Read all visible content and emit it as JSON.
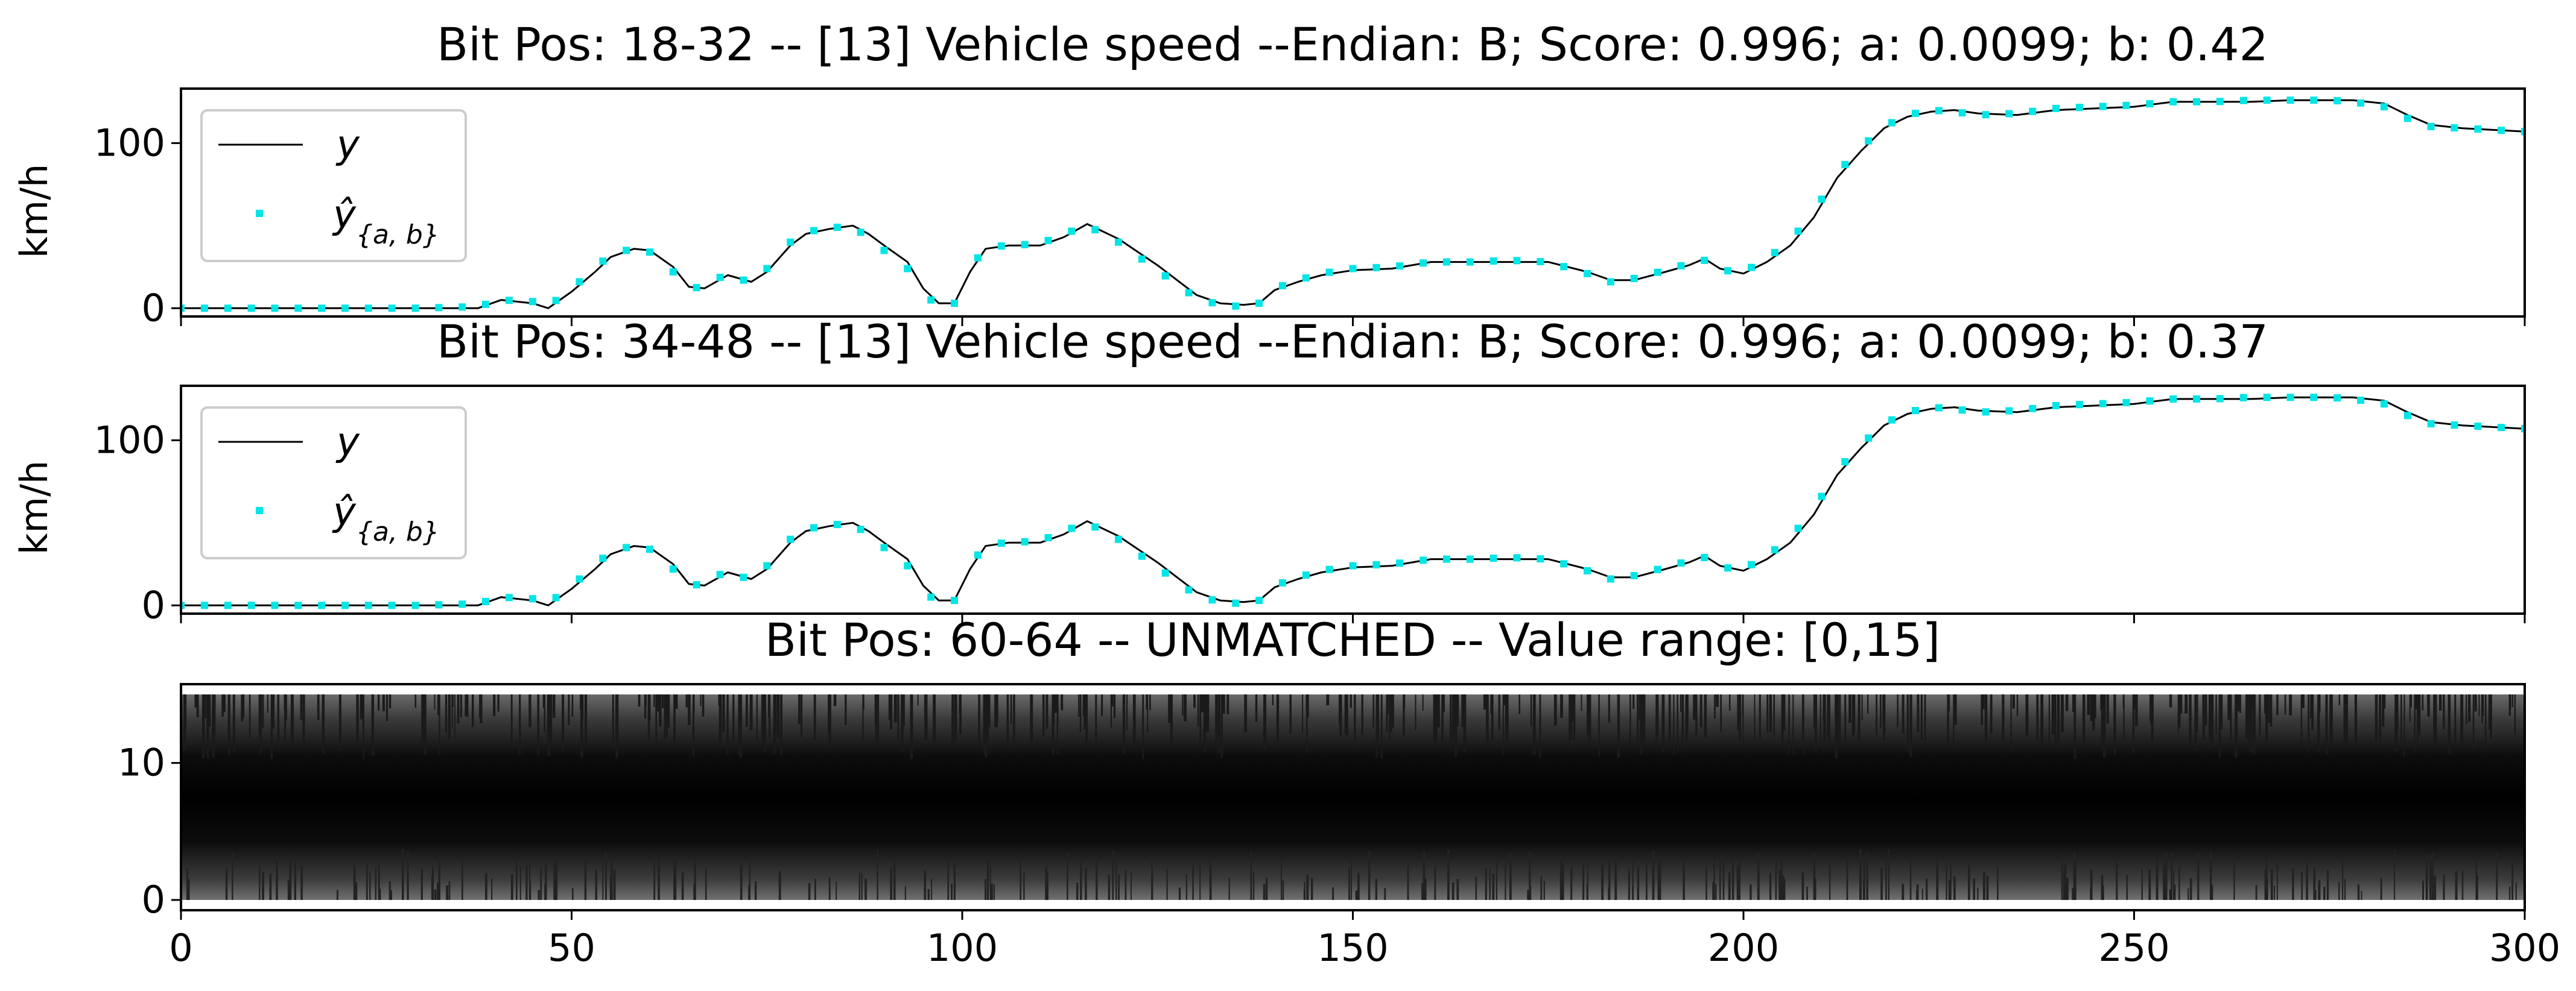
{
  "chart_data": [
    {
      "type": "line",
      "title": "Bit Pos: 18-32 --  [13] Vehicle speed --Endian: B;  Score: 0.996; a: 0.0099; b: 0.42",
      "xlabel": "",
      "ylabel": "km/h",
      "xlim": [
        0,
        300
      ],
      "ylim": [
        -5,
        133
      ],
      "yticks": [
        0,
        100
      ],
      "xticks": [
        0,
        50,
        100,
        150,
        200,
        250,
        300
      ],
      "grid": false,
      "legend_position": "upper-left",
      "x": [
        0,
        10,
        20,
        30,
        38,
        41,
        45,
        47,
        50,
        53,
        55,
        58,
        60,
        63,
        65,
        67,
        70,
        73,
        75,
        78,
        80,
        83,
        86,
        88,
        90,
        93,
        95,
        97,
        99,
        101,
        103,
        106,
        110,
        113,
        116,
        120,
        125,
        130,
        133,
        136,
        138,
        140,
        143,
        146,
        150,
        155,
        160,
        165,
        170,
        175,
        180,
        183,
        186,
        190,
        193,
        195,
        197,
        200,
        203,
        206,
        209,
        212,
        215,
        218,
        221,
        224,
        227,
        230,
        235,
        240,
        245,
        250,
        255,
        260,
        265,
        270,
        275,
        278,
        282,
        285,
        288,
        292,
        296,
        300
      ],
      "series": [
        {
          "name": "y",
          "color": "#000000",
          "style": "line",
          "values": [
            0,
            0,
            0,
            0,
            0,
            5,
            3,
            0,
            10,
            22,
            31,
            36,
            35,
            25,
            13,
            12,
            20,
            16,
            22,
            38,
            45,
            48,
            50,
            45,
            38,
            28,
            12,
            3,
            3,
            22,
            36,
            38,
            38,
            43,
            51,
            42,
            26,
            8,
            3,
            2,
            3,
            11,
            16,
            20,
            23,
            24,
            28,
            28,
            28,
            28,
            22,
            17,
            17,
            22,
            26,
            30,
            24,
            21,
            28,
            38,
            55,
            79,
            95,
            109,
            116,
            119,
            120,
            118,
            117,
            120,
            121,
            122,
            125,
            125,
            125,
            126,
            126,
            126,
            124,
            117,
            111,
            109,
            108,
            107
          ]
        },
        {
          "name": "ŷ",
          "color": "#00e5e5",
          "style": "points",
          "values": [
            0,
            0,
            0,
            0,
            1,
            5,
            4,
            1,
            12,
            24,
            33,
            36,
            34,
            22,
            11,
            14,
            21,
            15,
            24,
            40,
            46,
            49,
            49,
            43,
            35,
            24,
            8,
            2,
            3,
            24,
            37,
            38,
            39,
            45,
            50,
            40,
            23,
            6,
            2,
            1,
            3,
            12,
            17,
            21,
            24,
            25,
            28,
            28,
            29,
            28,
            21,
            16,
            18,
            23,
            27,
            29,
            23,
            22,
            30,
            41,
            58,
            82,
            97,
            110,
            117,
            120,
            119,
            117,
            118,
            121,
            122,
            123,
            125,
            125,
            126,
            126,
            126,
            125,
            122,
            115,
            110,
            109,
            108,
            107
          ]
        }
      ]
    },
    {
      "type": "line",
      "title": "Bit Pos: 34-48 --  [13] Vehicle speed --Endian: B;  Score: 0.996; a: 0.0099; b: 0.37",
      "xlabel": "",
      "ylabel": "km/h",
      "xlim": [
        0,
        300
      ],
      "ylim": [
        -5,
        133
      ],
      "yticks": [
        0,
        100
      ],
      "xticks": [
        0,
        50,
        100,
        150,
        200,
        250,
        300
      ],
      "grid": false,
      "legend_position": "upper-left",
      "x": [
        0,
        10,
        20,
        30,
        38,
        41,
        45,
        47,
        50,
        53,
        55,
        58,
        60,
        63,
        65,
        67,
        70,
        73,
        75,
        78,
        80,
        83,
        86,
        88,
        90,
        93,
        95,
        97,
        99,
        101,
        103,
        106,
        110,
        113,
        116,
        120,
        125,
        130,
        133,
        136,
        138,
        140,
        143,
        146,
        150,
        155,
        160,
        165,
        170,
        175,
        180,
        183,
        186,
        190,
        193,
        195,
        197,
        200,
        203,
        206,
        209,
        212,
        215,
        218,
        221,
        224,
        227,
        230,
        235,
        240,
        245,
        250,
        255,
        260,
        265,
        270,
        275,
        278,
        282,
        285,
        288,
        292,
        296,
        300
      ],
      "series": [
        {
          "name": "y",
          "color": "#000000",
          "style": "line",
          "values": [
            0,
            0,
            0,
            0,
            0,
            5,
            3,
            0,
            10,
            22,
            31,
            36,
            35,
            25,
            13,
            12,
            20,
            16,
            22,
            38,
            45,
            48,
            50,
            45,
            38,
            28,
            12,
            3,
            3,
            22,
            36,
            38,
            38,
            43,
            51,
            42,
            26,
            8,
            3,
            2,
            3,
            11,
            16,
            20,
            23,
            24,
            28,
            28,
            28,
            28,
            22,
            17,
            17,
            22,
            26,
            30,
            24,
            21,
            28,
            38,
            55,
            79,
            95,
            109,
            116,
            119,
            120,
            118,
            117,
            120,
            121,
            122,
            125,
            125,
            125,
            126,
            126,
            126,
            124,
            117,
            111,
            109,
            108,
            107
          ]
        },
        {
          "name": "ŷ",
          "color": "#00e5e5",
          "style": "points",
          "values": [
            0,
            0,
            0,
            0,
            1,
            5,
            4,
            1,
            12,
            24,
            33,
            36,
            34,
            22,
            11,
            14,
            21,
            15,
            24,
            40,
            46,
            49,
            49,
            43,
            35,
            24,
            8,
            2,
            3,
            24,
            37,
            38,
            39,
            45,
            50,
            40,
            23,
            6,
            2,
            1,
            3,
            12,
            17,
            21,
            24,
            25,
            28,
            28,
            29,
            28,
            21,
            16,
            18,
            23,
            27,
            29,
            23,
            22,
            30,
            41,
            58,
            82,
            97,
            110,
            117,
            120,
            119,
            117,
            118,
            121,
            122,
            123,
            125,
            125,
            126,
            126,
            126,
            125,
            122,
            115,
            110,
            109,
            108,
            107
          ]
        }
      ]
    },
    {
      "type": "line",
      "title": "Bit Pos: 60-64 -- UNMATCHED -- Value range: [0,15]",
      "xlabel": "",
      "ylabel": "",
      "xlim": [
        0,
        300
      ],
      "ylim": [
        -0.75,
        15.75
      ],
      "yticks": [
        0,
        10
      ],
      "xticks": [
        0,
        50,
        100,
        150,
        200,
        250,
        300
      ],
      "xtick_labels": [
        "0",
        "50",
        "100",
        "150",
        "200",
        "250",
        "300"
      ],
      "grid": false,
      "value_range": [
        0,
        15
      ],
      "series": [
        {
          "color": "#000000",
          "style": "dense-oscillation",
          "min": 0,
          "max": 15
        }
      ]
    }
  ]
}
